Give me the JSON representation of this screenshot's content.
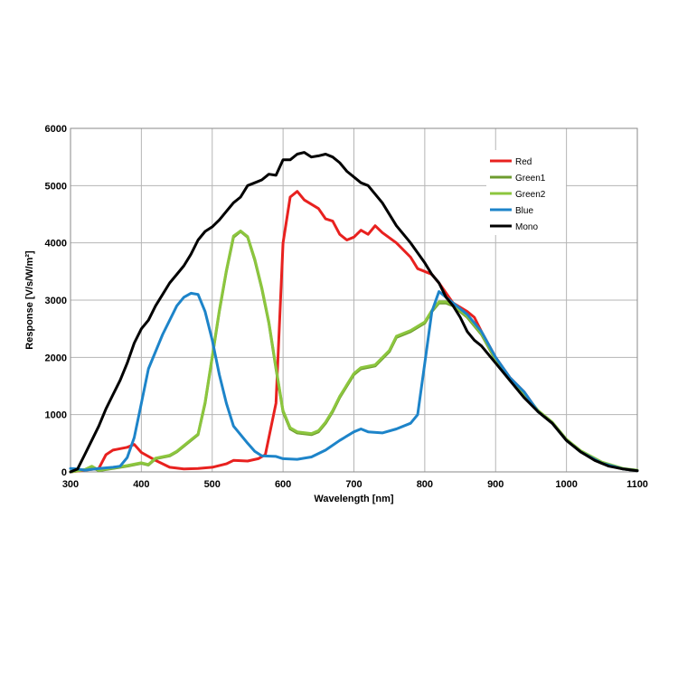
{
  "chart_data": {
    "type": "line",
    "xlabel": "Wavelength [nm]",
    "ylabel": "Response [V/s/W/m²]",
    "xlim": [
      300,
      1100
    ],
    "ylim": [
      0,
      6000
    ],
    "x_ticks": [
      "300",
      "400",
      "500",
      "600",
      "700",
      "800",
      "900",
      "1000",
      "1100"
    ],
    "y_ticks": [
      "0",
      "1000",
      "2000",
      "3000",
      "4000",
      "5000",
      "6000"
    ],
    "grid": true,
    "legend_position": "top-right",
    "series": [
      {
        "name": "Red",
        "color": "#e8211f",
        "points": [
          [
            300,
            0
          ],
          [
            340,
            60
          ],
          [
            350,
            300
          ],
          [
            360,
            380
          ],
          [
            380,
            430
          ],
          [
            390,
            480
          ],
          [
            400,
            340
          ],
          [
            420,
            200
          ],
          [
            440,
            80
          ],
          [
            460,
            50
          ],
          [
            480,
            60
          ],
          [
            500,
            80
          ],
          [
            520,
            140
          ],
          [
            530,
            200
          ],
          [
            550,
            190
          ],
          [
            565,
            230
          ],
          [
            575,
            300
          ],
          [
            590,
            1200
          ],
          [
            600,
            4000
          ],
          [
            610,
            4800
          ],
          [
            620,
            4900
          ],
          [
            630,
            4750
          ],
          [
            650,
            4600
          ],
          [
            660,
            4420
          ],
          [
            670,
            4380
          ],
          [
            680,
            4150
          ],
          [
            690,
            4050
          ],
          [
            700,
            4100
          ],
          [
            710,
            4220
          ],
          [
            720,
            4150
          ],
          [
            730,
            4300
          ],
          [
            740,
            4180
          ],
          [
            760,
            4000
          ],
          [
            780,
            3750
          ],
          [
            790,
            3550
          ],
          [
            800,
            3500
          ],
          [
            810,
            3450
          ],
          [
            820,
            3300
          ],
          [
            840,
            2950
          ],
          [
            860,
            2800
          ],
          [
            870,
            2700
          ],
          [
            880,
            2450
          ],
          [
            900,
            2000
          ],
          [
            920,
            1650
          ],
          [
            940,
            1400
          ],
          [
            960,
            1050
          ],
          [
            980,
            850
          ],
          [
            1000,
            550
          ],
          [
            1020,
            350
          ],
          [
            1050,
            150
          ],
          [
            1080,
            50
          ],
          [
            1100,
            20
          ]
        ]
      },
      {
        "name": "Green1",
        "color": "#6d9c2e",
        "points": [
          [
            300,
            0
          ],
          [
            320,
            40
          ],
          [
            330,
            80
          ],
          [
            340,
            20
          ],
          [
            360,
            60
          ],
          [
            380,
            100
          ],
          [
            400,
            150
          ],
          [
            410,
            120
          ],
          [
            420,
            230
          ],
          [
            440,
            280
          ],
          [
            450,
            350
          ],
          [
            470,
            550
          ],
          [
            480,
            650
          ],
          [
            490,
            1200
          ],
          [
            500,
            2000
          ],
          [
            510,
            2800
          ],
          [
            520,
            3500
          ],
          [
            530,
            4100
          ],
          [
            540,
            4200
          ],
          [
            550,
            4100
          ],
          [
            560,
            3700
          ],
          [
            570,
            3200
          ],
          [
            580,
            2600
          ],
          [
            590,
            1800
          ],
          [
            600,
            1050
          ],
          [
            610,
            750
          ],
          [
            620,
            680
          ],
          [
            640,
            650
          ],
          [
            650,
            700
          ],
          [
            660,
            850
          ],
          [
            670,
            1050
          ],
          [
            680,
            1300
          ],
          [
            700,
            1700
          ],
          [
            710,
            1800
          ],
          [
            730,
            1850
          ],
          [
            750,
            2100
          ],
          [
            760,
            2350
          ],
          [
            780,
            2450
          ],
          [
            800,
            2600
          ],
          [
            810,
            2800
          ],
          [
            820,
            2950
          ],
          [
            830,
            2950
          ],
          [
            840,
            2900
          ],
          [
            860,
            2700
          ],
          [
            880,
            2400
          ],
          [
            900,
            1950
          ],
          [
            920,
            1600
          ],
          [
            940,
            1350
          ],
          [
            960,
            1050
          ],
          [
            980,
            850
          ],
          [
            1000,
            550
          ],
          [
            1020,
            350
          ],
          [
            1050,
            150
          ],
          [
            1080,
            50
          ],
          [
            1100,
            20
          ]
        ]
      },
      {
        "name": "Green2",
        "color": "#8cc63e",
        "points": [
          [
            300,
            0
          ],
          [
            320,
            40
          ],
          [
            330,
            100
          ],
          [
            340,
            30
          ],
          [
            360,
            70
          ],
          [
            380,
            110
          ],
          [
            400,
            160
          ],
          [
            410,
            130
          ],
          [
            420,
            240
          ],
          [
            440,
            290
          ],
          [
            450,
            360
          ],
          [
            470,
            560
          ],
          [
            480,
            660
          ],
          [
            490,
            1220
          ],
          [
            500,
            2020
          ],
          [
            510,
            2820
          ],
          [
            520,
            3520
          ],
          [
            530,
            4120
          ],
          [
            540,
            4210
          ],
          [
            550,
            4110
          ],
          [
            560,
            3720
          ],
          [
            570,
            3220
          ],
          [
            580,
            2620
          ],
          [
            590,
            1820
          ],
          [
            600,
            1070
          ],
          [
            610,
            770
          ],
          [
            620,
            700
          ],
          [
            640,
            670
          ],
          [
            650,
            720
          ],
          [
            660,
            870
          ],
          [
            670,
            1070
          ],
          [
            680,
            1320
          ],
          [
            700,
            1720
          ],
          [
            710,
            1820
          ],
          [
            730,
            1870
          ],
          [
            750,
            2120
          ],
          [
            760,
            2370
          ],
          [
            780,
            2470
          ],
          [
            800,
            2620
          ],
          [
            810,
            2820
          ],
          [
            820,
            2970
          ],
          [
            830,
            2970
          ],
          [
            840,
            2920
          ],
          [
            860,
            2720
          ],
          [
            880,
            2420
          ],
          [
            900,
            1970
          ],
          [
            920,
            1620
          ],
          [
            940,
            1370
          ],
          [
            960,
            1070
          ],
          [
            980,
            870
          ],
          [
            1000,
            570
          ],
          [
            1020,
            370
          ],
          [
            1050,
            170
          ],
          [
            1080,
            60
          ],
          [
            1100,
            30
          ]
        ]
      },
      {
        "name": "Blue",
        "color": "#1d84c9",
        "points": [
          [
            300,
            60
          ],
          [
            310,
            50
          ],
          [
            320,
            30
          ],
          [
            340,
            60
          ],
          [
            360,
            80
          ],
          [
            370,
            100
          ],
          [
            380,
            250
          ],
          [
            390,
            600
          ],
          [
            400,
            1200
          ],
          [
            410,
            1800
          ],
          [
            430,
            2400
          ],
          [
            450,
            2900
          ],
          [
            460,
            3050
          ],
          [
            470,
            3120
          ],
          [
            480,
            3100
          ],
          [
            490,
            2800
          ],
          [
            500,
            2300
          ],
          [
            510,
            1700
          ],
          [
            520,
            1200
          ],
          [
            530,
            800
          ],
          [
            550,
            500
          ],
          [
            560,
            360
          ],
          [
            570,
            280
          ],
          [
            590,
            270
          ],
          [
            600,
            230
          ],
          [
            620,
            220
          ],
          [
            640,
            260
          ],
          [
            660,
            380
          ],
          [
            680,
            550
          ],
          [
            700,
            700
          ],
          [
            710,
            750
          ],
          [
            720,
            700
          ],
          [
            740,
            680
          ],
          [
            760,
            750
          ],
          [
            780,
            850
          ],
          [
            790,
            1000
          ],
          [
            800,
            1900
          ],
          [
            810,
            2800
          ],
          [
            820,
            3150
          ],
          [
            830,
            3050
          ],
          [
            840,
            2950
          ],
          [
            860,
            2750
          ],
          [
            880,
            2450
          ],
          [
            900,
            2000
          ],
          [
            920,
            1650
          ],
          [
            940,
            1400
          ],
          [
            960,
            1050
          ],
          [
            980,
            850
          ],
          [
            1000,
            550
          ],
          [
            1020,
            350
          ],
          [
            1050,
            150
          ],
          [
            1080,
            50
          ],
          [
            1100,
            20
          ]
        ]
      },
      {
        "name": "Mono",
        "color": "#000000",
        "points": [
          [
            300,
            0
          ],
          [
            310,
            50
          ],
          [
            320,
            300
          ],
          [
            330,
            550
          ],
          [
            340,
            800
          ],
          [
            350,
            1100
          ],
          [
            360,
            1350
          ],
          [
            370,
            1600
          ],
          [
            380,
            1900
          ],
          [
            390,
            2250
          ],
          [
            400,
            2500
          ],
          [
            410,
            2650
          ],
          [
            420,
            2900
          ],
          [
            430,
            3100
          ],
          [
            440,
            3300
          ],
          [
            450,
            3450
          ],
          [
            460,
            3600
          ],
          [
            470,
            3800
          ],
          [
            480,
            4050
          ],
          [
            490,
            4200
          ],
          [
            500,
            4280
          ],
          [
            510,
            4400
          ],
          [
            520,
            4550
          ],
          [
            530,
            4700
          ],
          [
            540,
            4800
          ],
          [
            550,
            5000
          ],
          [
            560,
            5050
          ],
          [
            570,
            5100
          ],
          [
            580,
            5200
          ],
          [
            590,
            5180
          ],
          [
            600,
            5450
          ],
          [
            610,
            5450
          ],
          [
            620,
            5550
          ],
          [
            630,
            5580
          ],
          [
            640,
            5500
          ],
          [
            650,
            5520
          ],
          [
            660,
            5550
          ],
          [
            670,
            5500
          ],
          [
            680,
            5400
          ],
          [
            690,
            5250
          ],
          [
            700,
            5150
          ],
          [
            710,
            5050
          ],
          [
            720,
            5000
          ],
          [
            740,
            4700
          ],
          [
            760,
            4300
          ],
          [
            780,
            4000
          ],
          [
            800,
            3650
          ],
          [
            810,
            3450
          ],
          [
            820,
            3300
          ],
          [
            830,
            3050
          ],
          [
            840,
            2900
          ],
          [
            850,
            2700
          ],
          [
            860,
            2450
          ],
          [
            870,
            2300
          ],
          [
            880,
            2200
          ],
          [
            890,
            2050
          ],
          [
            900,
            1900
          ],
          [
            920,
            1600
          ],
          [
            940,
            1300
          ],
          [
            960,
            1050
          ],
          [
            980,
            850
          ],
          [
            1000,
            550
          ],
          [
            1020,
            350
          ],
          [
            1040,
            200
          ],
          [
            1060,
            100
          ],
          [
            1080,
            50
          ],
          [
            1100,
            20
          ]
        ]
      }
    ]
  }
}
